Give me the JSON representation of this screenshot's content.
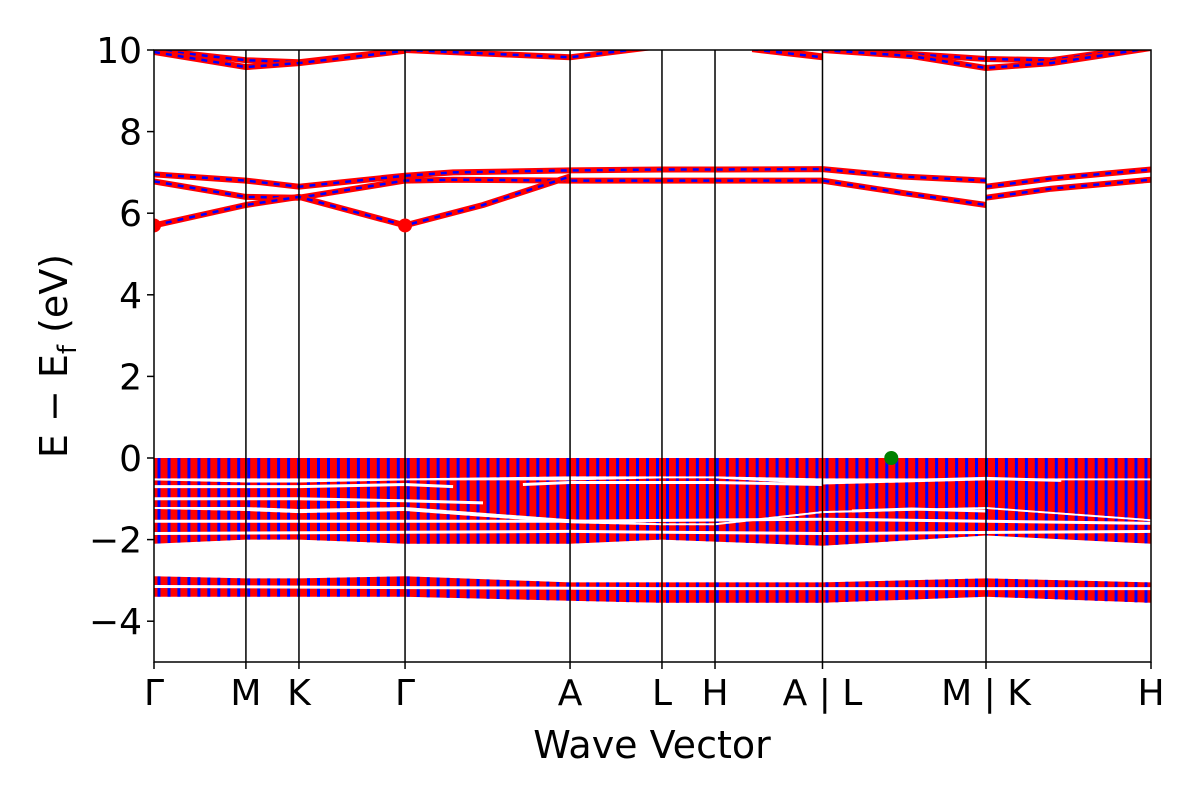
{
  "chart_data": {
    "type": "line",
    "title": "",
    "xlabel": "Wave Vector",
    "ylabel_main": "E − E",
    "ylabel_sub": "f",
    "ylabel_unit": " (eV)",
    "ylim": [
      -5,
      10
    ],
    "yticks": [
      -4,
      -2,
      0,
      2,
      4,
      6,
      8,
      10
    ],
    "ytick_labels": [
      "−4",
      "−2",
      "0",
      "2",
      "4",
      "6",
      "8",
      "10"
    ],
    "path_length": 1.0,
    "kpoints": [
      {
        "label": "Γ",
        "pos": 0.0
      },
      {
        "label": "M",
        "pos": 0.0922
      },
      {
        "label": "K",
        "pos": 0.1454
      },
      {
        "label": "Γ",
        "pos": 0.2518
      },
      {
        "label": "A",
        "pos": 0.4173
      },
      {
        "label": "L",
        "pos": 0.5095
      },
      {
        "label": "H",
        "pos": 0.5627
      },
      {
        "label": "A | L",
        "pos": 0.6705
      },
      {
        "label": "M | K",
        "pos": 0.8345
      },
      {
        "label": "H",
        "pos": 1.0
      }
    ],
    "colors": {
      "spin_up": "#0000ff",
      "spin_down": "#ff0000",
      "cbm": "#ff0000",
      "vbm": "#008000"
    },
    "conduction_bands": [
      {
        "x": [
          0.0,
          0.0922,
          0.1454,
          0.2518,
          0.4173,
          0.5095,
          0.5627,
          0.6705
        ],
        "y": [
          10.0,
          9.75,
          9.7,
          10.0,
          9.82,
          10.1,
          10.2,
          9.84
        ]
      },
      {
        "x": [
          0.0,
          0.0922,
          0.1454,
          0.2518
        ],
        "y": [
          9.95,
          9.58,
          9.68,
          9.98
        ]
      },
      {
        "x": [
          0.6,
          0.6705
        ],
        "y": [
          10.02,
          9.82
        ]
      },
      {
        "x": [
          0.6705,
          0.76,
          0.8345,
          0.9,
          1.0
        ],
        "y": [
          10.05,
          9.9,
          9.78,
          9.75,
          10.1
        ]
      },
      {
        "x": [
          0.6705,
          0.76,
          0.8345,
          0.9,
          1.0
        ],
        "y": [
          10.0,
          9.85,
          9.56,
          9.68,
          10.05
        ]
      },
      {
        "x": [
          0.0,
          0.0922,
          0.1454,
          0.2518,
          0.3,
          0.4173,
          0.5095,
          0.5627,
          0.6705,
          0.75,
          0.8345
        ],
        "y": [
          6.95,
          6.8,
          6.65,
          6.92,
          7.0,
          7.05,
          7.07,
          7.07,
          7.08,
          6.9,
          6.8
        ]
      },
      {
        "x": [
          0.0,
          0.0922,
          0.1454,
          0.2518,
          0.3,
          0.4173,
          0.5095,
          0.5627,
          0.6705,
          0.75,
          0.8345
        ],
        "y": [
          6.78,
          6.4,
          6.38,
          6.8,
          6.82,
          6.8,
          6.8,
          6.8,
          6.8,
          6.5,
          6.2
        ]
      },
      {
        "x": [
          0.0,
          0.0922,
          0.1454,
          0.2518,
          0.33,
          0.4173
        ],
        "y": [
          5.7,
          6.2,
          6.4,
          5.7,
          6.2,
          6.9
        ]
      },
      {
        "x": [
          0.8345,
          0.9,
          1.0
        ],
        "y": [
          6.65,
          6.85,
          7.07
        ]
      },
      {
        "x": [
          0.8345,
          0.9,
          1.0
        ],
        "y": [
          6.38,
          6.6,
          6.82
        ]
      }
    ],
    "valence_blocks": [
      {
        "top": [
          0.0,
          0.0,
          0.0,
          0.0,
          0.0,
          0.0,
          0.0,
          0.0,
          0.0,
          0.0
        ],
        "bottom": [
          -0.5,
          -0.5,
          -0.5,
          -0.5,
          -0.45,
          -0.45,
          -0.45,
          -0.5,
          -0.5,
          -0.5
        ]
      },
      {
        "top": [
          -0.55,
          -0.6,
          -0.6,
          -0.55,
          -0.55,
          -0.5,
          -0.5,
          -0.65,
          -0.55,
          -0.55
        ],
        "bottom": [
          -1.2,
          -1.2,
          -1.25,
          -1.2,
          -1.5,
          -1.6,
          -1.6,
          -1.3,
          -1.2,
          -1.5
        ]
      },
      {
        "top": [
          -1.25,
          -1.3,
          -1.35,
          -1.3,
          -1.6,
          -1.65,
          -1.65,
          -1.35,
          -1.25,
          -1.55
        ],
        "bottom": [
          -2.1,
          -2.0,
          -2.0,
          -2.1,
          -2.1,
          -2.0,
          -2.05,
          -2.15,
          -1.9,
          -2.1
        ]
      },
      {
        "top": [
          -2.9,
          -2.95,
          -2.95,
          -2.9,
          -3.05,
          -3.05,
          -3.05,
          -3.05,
          -2.95,
          -3.05
        ],
        "bottom": [
          -3.4,
          -3.4,
          -3.4,
          -3.4,
          -3.5,
          -3.55,
          -3.55,
          -3.55,
          -3.4,
          -3.55
        ]
      }
    ],
    "valence_gaps": [
      {
        "x": [
          0.0,
          0.1454,
          0.2518,
          0.3
        ],
        "y": [
          -0.7,
          -0.7,
          -0.65,
          -0.7
        ]
      },
      {
        "x": [
          0.37,
          0.4173,
          0.5627,
          0.6705
        ],
        "y": [
          -0.65,
          -0.6,
          -0.6,
          -0.65
        ]
      },
      {
        "x": [
          0.0,
          0.1454,
          0.2518,
          0.33
        ],
        "y": [
          -1.0,
          -1.0,
          -1.05,
          -1.1
        ]
      },
      {
        "x": [
          0.7,
          0.76,
          0.8345
        ],
        "y": [
          -1.3,
          -1.25,
          -1.3
        ]
      },
      {
        "x": [
          0.76,
          0.8345,
          0.91
        ],
        "y": [
          -0.55,
          -0.5,
          -0.55
        ]
      },
      {
        "x": [
          0.0,
          0.4173,
          0.6705,
          1.0
        ],
        "y": [
          -1.55,
          -1.55,
          -1.5,
          -1.6
        ]
      },
      {
        "x": [
          0.0,
          0.4173,
          0.6705,
          1.0
        ],
        "y": [
          -1.85,
          -1.8,
          -1.85,
          -1.8
        ]
      },
      {
        "x": [
          0.0,
          0.5,
          1.0
        ],
        "y": [
          -3.15,
          -3.2,
          -3.2
        ]
      }
    ],
    "markers": [
      {
        "kind": "cbm",
        "x": 0.0,
        "y": 5.7
      },
      {
        "kind": "cbm",
        "x": 0.2518,
        "y": 5.7
      },
      {
        "kind": "vbm",
        "x": 0.7395,
        "y": 0.0
      }
    ]
  }
}
